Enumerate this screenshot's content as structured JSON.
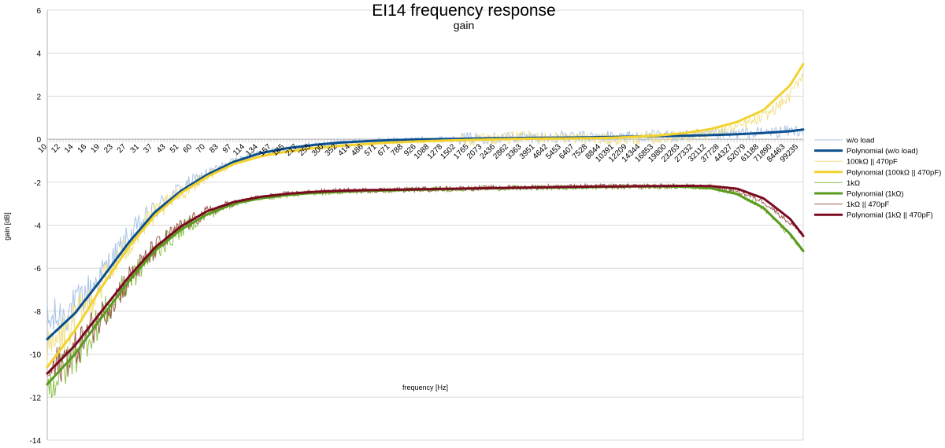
{
  "chart_data": {
    "type": "line",
    "title": "EI14 frequency response",
    "subtitle": "gain",
    "xlabel": "frequency [Hz]",
    "ylabel": "gain [dB]",
    "ylim": [
      -14,
      6
    ],
    "yticks": [
      -14,
      -12,
      -10,
      -8,
      -6,
      -4,
      -2,
      0,
      2,
      4,
      6
    ],
    "x_tick_labels": [
      "10",
      "12",
      "14",
      "16",
      "19",
      "23",
      "27",
      "31",
      "37",
      "43",
      "51",
      "60",
      "70",
      "83",
      "97",
      "114",
      "134",
      "157",
      "185",
      "217",
      "255",
      "300",
      "352",
      "414",
      "486",
      "571",
      "671",
      "788",
      "926",
      "1088",
      "1278",
      "1502",
      "1765",
      "2073",
      "2436",
      "2862",
      "3363",
      "3951",
      "4642",
      "5453",
      "6407",
      "7528",
      "8844",
      "10391",
      "12209",
      "14344",
      "16853",
      "19800",
      "23263",
      "27332",
      "32112",
      "37728",
      "44327",
      "52079",
      "61188",
      "71890",
      "84463",
      "99235"
    ],
    "grid": "horizontal",
    "legend_position": "right",
    "series": [
      {
        "name": "w/o load",
        "kind": "measured",
        "color": "#a8c4e6",
        "x": [
          10,
          14,
          19,
          27,
          37,
          51,
          70,
          97,
          134,
          185,
          255,
          352,
          486,
          671,
          926,
          1278,
          1765,
          2436,
          3363,
          4642,
          6407,
          8844,
          12209,
          16853,
          23263,
          32112,
          44327,
          61188,
          84463,
          99235
        ],
        "y": [
          -8.6,
          -7.8,
          -6.4,
          -4.6,
          -3.3,
          -2.3,
          -1.6,
          -1.0,
          -0.6,
          -0.4,
          -0.25,
          -0.15,
          -0.08,
          -0.03,
          0.0,
          0.03,
          0.05,
          0.07,
          0.08,
          0.09,
          0.1,
          0.12,
          0.14,
          0.15,
          0.17,
          0.2,
          0.25,
          0.3,
          0.38,
          0.42
        ]
      },
      {
        "name": "Polynomial (w/o load)",
        "kind": "trend",
        "color": "#0b4f8f",
        "x": [
          10,
          14,
          19,
          27,
          37,
          51,
          70,
          97,
          134,
          185,
          255,
          352,
          486,
          671,
          926,
          1278,
          1765,
          2436,
          3363,
          4642,
          6407,
          8844,
          12209,
          16853,
          23263,
          32112,
          44327,
          61188,
          84463,
          99235
        ],
        "y": [
          -9.3,
          -8.1,
          -6.6,
          -4.8,
          -3.4,
          -2.4,
          -1.65,
          -1.05,
          -0.65,
          -0.42,
          -0.27,
          -0.16,
          -0.09,
          -0.04,
          -0.01,
          0.01,
          0.03,
          0.05,
          0.06,
          0.07,
          0.08,
          0.1,
          0.12,
          0.14,
          0.16,
          0.19,
          0.23,
          0.29,
          0.37,
          0.45
        ]
      },
      {
        "name": "100kΩ || 470pF",
        "kind": "measured",
        "color": "#f2e08a",
        "x": [
          10,
          14,
          19,
          27,
          37,
          51,
          70,
          97,
          134,
          185,
          255,
          352,
          486,
          671,
          926,
          1278,
          1765,
          2436,
          3363,
          4642,
          6407,
          8844,
          12209,
          16853,
          23263,
          32112,
          44327,
          61188,
          84463,
          99235
        ],
        "y": [
          -10.0,
          -8.4,
          -6.8,
          -4.9,
          -3.5,
          -2.5,
          -1.7,
          -1.1,
          -0.75,
          -0.55,
          -0.4,
          -0.3,
          -0.22,
          -0.15,
          -0.1,
          -0.05,
          0.0,
          0.05,
          0.1,
          0.1,
          0.05,
          0.0,
          0.0,
          0.05,
          0.15,
          0.3,
          0.55,
          1.0,
          2.0,
          3.1
        ]
      },
      {
        "name": "Polynomial (100kΩ || 470pF)",
        "kind": "trend",
        "color": "#f2d22e",
        "x": [
          10,
          14,
          19,
          27,
          37,
          51,
          70,
          97,
          134,
          185,
          255,
          352,
          486,
          671,
          926,
          1278,
          1765,
          2436,
          3363,
          4642,
          6407,
          8844,
          12209,
          16853,
          23263,
          32112,
          44327,
          61188,
          84463,
          99235
        ],
        "y": [
          -10.6,
          -8.9,
          -7.0,
          -5.0,
          -3.55,
          -2.5,
          -1.75,
          -1.15,
          -0.8,
          -0.58,
          -0.42,
          -0.31,
          -0.22,
          -0.15,
          -0.1,
          -0.06,
          -0.03,
          0.0,
          0.02,
          0.03,
          0.04,
          0.06,
          0.1,
          0.17,
          0.28,
          0.47,
          0.8,
          1.35,
          2.5,
          3.5
        ]
      },
      {
        "name": "1kΩ",
        "kind": "measured",
        "color": "#8bc34a",
        "x": [
          10,
          14,
          19,
          27,
          37,
          51,
          70,
          97,
          134,
          185,
          255,
          352,
          486,
          671,
          926,
          1278,
          1765,
          2436,
          3363,
          4642,
          6407,
          8844,
          12209,
          16853,
          23263,
          32112,
          44327,
          61188,
          84463,
          99235
        ],
        "y": [
          -11.6,
          -10.1,
          -8.4,
          -6.6,
          -5.2,
          -4.2,
          -3.5,
          -3.0,
          -2.75,
          -2.6,
          -2.5,
          -2.45,
          -2.4,
          -2.38,
          -2.35,
          -2.33,
          -2.3,
          -2.28,
          -2.26,
          -2.25,
          -2.24,
          -2.22,
          -2.2,
          -2.2,
          -2.2,
          -2.25,
          -2.5,
          -3.2,
          -4.5,
          -5.2
        ]
      },
      {
        "name": "Polynomial (1kΩ)",
        "kind": "trend",
        "color": "#5a9a1e",
        "x": [
          10,
          14,
          19,
          27,
          37,
          51,
          70,
          97,
          134,
          185,
          255,
          352,
          486,
          671,
          926,
          1278,
          1765,
          2436,
          3363,
          4642,
          6407,
          8844,
          12209,
          16853,
          23263,
          32112,
          44327,
          61188,
          84463,
          99235
        ],
        "y": [
          -11.4,
          -10.0,
          -8.4,
          -6.6,
          -5.2,
          -4.2,
          -3.5,
          -3.0,
          -2.75,
          -2.6,
          -2.5,
          -2.45,
          -2.4,
          -2.38,
          -2.35,
          -2.33,
          -2.3,
          -2.28,
          -2.26,
          -2.25,
          -2.24,
          -2.22,
          -2.2,
          -2.2,
          -2.21,
          -2.28,
          -2.55,
          -3.2,
          -4.4,
          -5.2
        ]
      },
      {
        "name": "1kΩ || 470pF",
        "kind": "measured",
        "color": "#9e5a4e",
        "x": [
          10,
          14,
          19,
          27,
          37,
          51,
          70,
          97,
          134,
          185,
          255,
          352,
          486,
          671,
          926,
          1278,
          1765,
          2436,
          3363,
          4642,
          6407,
          8844,
          12209,
          16853,
          23263,
          32112,
          44327,
          61188,
          84463,
          99235
        ],
        "y": [
          -11.0,
          -9.8,
          -8.3,
          -6.5,
          -5.1,
          -4.1,
          -3.4,
          -2.95,
          -2.7,
          -2.55,
          -2.45,
          -2.4,
          -2.38,
          -2.35,
          -2.33,
          -2.3,
          -2.28,
          -2.26,
          -2.24,
          -2.22,
          -2.2,
          -2.2,
          -2.2,
          -2.18,
          -2.2,
          -2.22,
          -2.4,
          -2.9,
          -3.9,
          -4.4
        ]
      },
      {
        "name": "Polynomial (1kΩ || 470pF)",
        "kind": "trend",
        "color": "#7a0c22",
        "x": [
          10,
          14,
          19,
          27,
          37,
          51,
          70,
          97,
          134,
          185,
          255,
          352,
          486,
          671,
          926,
          1278,
          1765,
          2436,
          3363,
          4642,
          6407,
          8844,
          12209,
          16853,
          23263,
          32112,
          44327,
          61188,
          84463,
          99235
        ],
        "y": [
          -10.9,
          -9.6,
          -8.1,
          -6.4,
          -5.05,
          -4.05,
          -3.35,
          -2.92,
          -2.68,
          -2.54,
          -2.45,
          -2.4,
          -2.37,
          -2.35,
          -2.33,
          -2.31,
          -2.29,
          -2.27,
          -2.25,
          -2.23,
          -2.21,
          -2.2,
          -2.19,
          -2.18,
          -2.17,
          -2.18,
          -2.3,
          -2.75,
          -3.7,
          -4.5
        ]
      }
    ]
  }
}
